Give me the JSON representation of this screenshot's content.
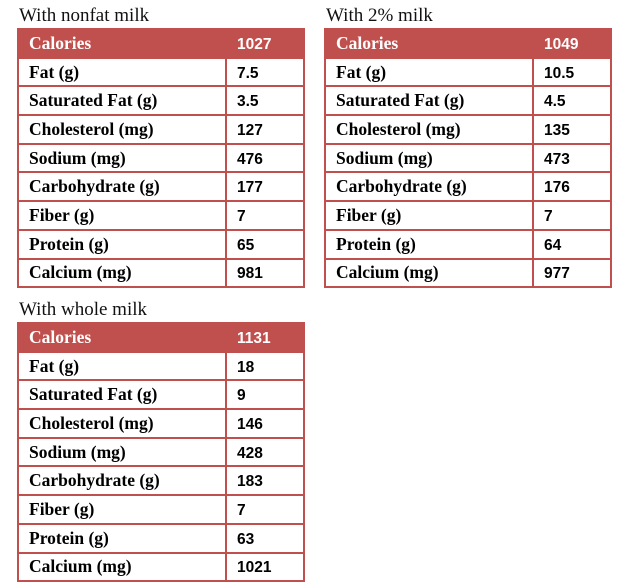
{
  "tables": [
    {
      "title": "With nonfat milk",
      "header": [
        "Calories",
        "1027"
      ],
      "rows": [
        [
          "Fat (g)",
          "7.5"
        ],
        [
          "Saturated Fat (g)",
          "3.5"
        ],
        [
          "Cholesterol (mg)",
          "127"
        ],
        [
          "Sodium (mg)",
          "476"
        ],
        [
          "Carbohydrate (g)",
          "177"
        ],
        [
          "Fiber (g)",
          "7"
        ],
        [
          "Protein (g)",
          "65"
        ],
        [
          "Calcium (mg)",
          "981"
        ]
      ]
    },
    {
      "title": "With 2% milk",
      "header": [
        "Calories",
        "1049"
      ],
      "rows": [
        [
          "Fat (g)",
          "10.5"
        ],
        [
          "Saturated Fat (g)",
          "4.5"
        ],
        [
          "Cholesterol (mg)",
          "135"
        ],
        [
          "Sodium (mg)",
          "473"
        ],
        [
          "Carbohydrate (g)",
          "176"
        ],
        [
          "Fiber (g)",
          "7"
        ],
        [
          "Protein (g)",
          "64"
        ],
        [
          "Calcium (mg)",
          "977"
        ]
      ]
    },
    {
      "title": "With whole milk",
      "header": [
        "Calories",
        "1131"
      ],
      "rows": [
        [
          "Fat (g)",
          "18"
        ],
        [
          "Saturated Fat (g)",
          "9"
        ],
        [
          "Cholesterol (mg)",
          "146"
        ],
        [
          "Sodium (mg)",
          "428"
        ],
        [
          "Carbohydrate (g)",
          "183"
        ],
        [
          "Fiber (g)",
          "7"
        ],
        [
          "Protein (g)",
          "63"
        ],
        [
          "Calcium (mg)",
          "1021"
        ]
      ]
    }
  ]
}
